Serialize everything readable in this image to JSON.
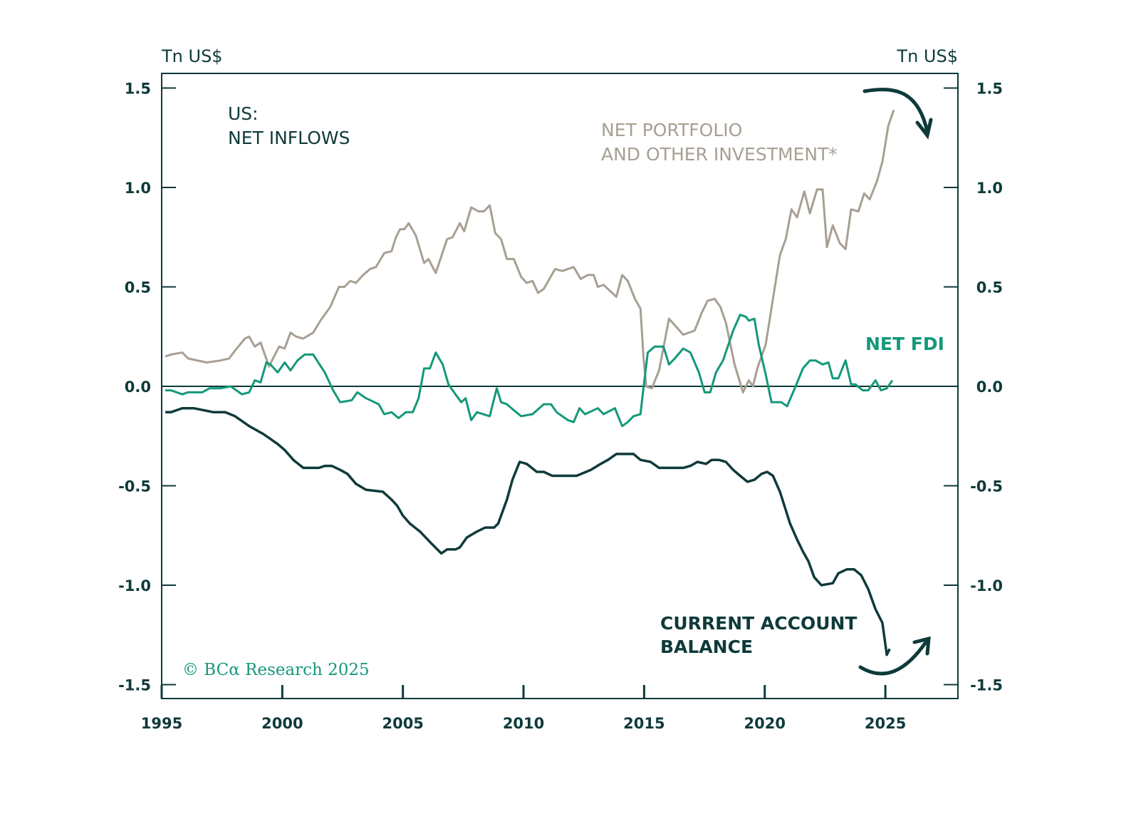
{
  "chart_data": {
    "type": "line",
    "title": "US:",
    "subtitle": "NET INFLOWS",
    "ylabel_left": "Tn US$",
    "ylabel_right": "Tn US$",
    "ylim": [
      -1.5,
      1.5
    ],
    "xlim": [
      1995,
      2028
    ],
    "yticks": [
      "1.5",
      "1.0",
      "0.5",
      "0.0",
      "-0.5",
      "-1.0",
      "-1.5"
    ],
    "ytick_values": [
      1.5,
      1.0,
      0.5,
      0.0,
      -0.5,
      -1.0,
      -1.5
    ],
    "xticks": [
      "1995",
      "2000",
      "2005",
      "2010",
      "2015",
      "2020",
      "2025"
    ],
    "xtick_values": [
      1995,
      2000,
      2005,
      2010,
      2015,
      2020,
      2025
    ],
    "grid": false,
    "zero_line": true,
    "annotations": {
      "portfolio_line1": "NET PORTFOLIO",
      "portfolio_line2": "AND OTHER INVESTMENT*",
      "fdi": "NET FDI",
      "ca_line1": "CURRENT ACCOUNT",
      "ca_line2": "BALANCE",
      "arrow_top": "curved arrow pointing down",
      "arrow_bottom": "curved arrow pointing up"
    },
    "copyright": "© BCα Research 2025",
    "series": [
      {
        "name": "NET PORTFOLIO AND OTHER INVESTMENT*",
        "color": "#a89f93",
        "x": [
          1995.15,
          1995.38,
          1995.86,
          1996.09,
          1996.86,
          1997.45,
          1997.8,
          1998.04,
          1998.45,
          1998.63,
          1998.86,
          1999.1,
          1999.45,
          1999.87,
          2000.1,
          2000.34,
          2000.58,
          2000.87,
          2001.28,
          2001.58,
          2001.99,
          2002.35,
          2002.58,
          2002.82,
          2003.05,
          2003.35,
          2003.64,
          2003.88,
          2004.23,
          2004.53,
          2004.71,
          2004.88,
          2005.06,
          2005.24,
          2005.53,
          2005.88,
          2006.06,
          2006.36,
          2006.83,
          2007.06,
          2007.36,
          2007.54,
          2007.83,
          2008.13,
          2008.36,
          2008.6,
          2008.83,
          2009.07,
          2009.31,
          2009.6,
          2009.9,
          2010.13,
          2010.37,
          2010.6,
          2010.84,
          2011.31,
          2011.61,
          2012.08,
          2012.37,
          2012.67,
          2012.91,
          2013.08,
          2013.32,
          2013.85,
          2014.09,
          2014.32,
          2014.62,
          2014.85,
          2014.97,
          2015.09,
          2015.32,
          2015.62,
          2016.03,
          2016.62,
          2016.86,
          2017.09,
          2017.39,
          2017.63,
          2017.92,
          2018.16,
          2018.39,
          2018.75,
          2019.1,
          2019.34,
          2019.51,
          2019.69,
          2020.04,
          2020.34,
          2020.63,
          2020.87,
          2021.11,
          2021.34,
          2021.64,
          2021.87,
          2022.17,
          2022.4,
          2022.58,
          2022.82,
          2023.11,
          2023.35,
          2023.58,
          2023.88,
          2024.12,
          2024.35,
          2024.65,
          2024.88,
          2025.12,
          2025.35
        ],
        "y": [
          0.15,
          0.16,
          0.17,
          0.14,
          0.12,
          0.13,
          0.14,
          0.18,
          0.24,
          0.25,
          0.2,
          0.22,
          0.1,
          0.2,
          0.19,
          0.27,
          0.25,
          0.24,
          0.27,
          0.33,
          0.4,
          0.5,
          0.5,
          0.53,
          0.52,
          0.56,
          0.59,
          0.6,
          0.67,
          0.68,
          0.75,
          0.79,
          0.79,
          0.82,
          0.76,
          0.62,
          0.64,
          0.57,
          0.74,
          0.75,
          0.82,
          0.78,
          0.9,
          0.88,
          0.88,
          0.91,
          0.77,
          0.74,
          0.64,
          0.64,
          0.55,
          0.52,
          0.53,
          0.47,
          0.49,
          0.59,
          0.58,
          0.6,
          0.54,
          0.56,
          0.56,
          0.5,
          0.51,
          0.45,
          0.56,
          0.53,
          0.44,
          0.39,
          0.15,
          0.0,
          -0.01,
          0.08,
          0.34,
          0.26,
          0.27,
          0.28,
          0.37,
          0.43,
          0.44,
          0.4,
          0.32,
          0.11,
          -0.03,
          0.03,
          0.0,
          0.09,
          0.21,
          0.44,
          0.66,
          0.74,
          0.89,
          0.85,
          0.98,
          0.87,
          0.99,
          0.99,
          0.7,
          0.81,
          0.72,
          0.69,
          0.89,
          0.88,
          0.97,
          0.94,
          1.03,
          1.13,
          1.31,
          1.39
        ]
      },
      {
        "name": "NET FDI",
        "color": "#14987a",
        "x": [
          1995.15,
          1995.38,
          1995.86,
          1996.09,
          1996.68,
          1996.98,
          1997.45,
          1997.86,
          1998.33,
          1998.63,
          1998.86,
          1999.1,
          1999.34,
          1999.51,
          1999.81,
          2000.1,
          2000.34,
          2000.63,
          2000.93,
          2001.28,
          2001.76,
          2002.11,
          2002.4,
          2002.88,
          2003.11,
          2003.47,
          2004.0,
          2004.23,
          2004.53,
          2004.82,
          2005.12,
          2005.41,
          2005.65,
          2005.88,
          2006.12,
          2006.36,
          2006.65,
          2006.89,
          2007.18,
          2007.42,
          2007.6,
          2007.83,
          2008.07,
          2008.6,
          2008.89,
          2009.07,
          2009.31,
          2009.6,
          2009.9,
          2010.37,
          2010.84,
          2011.14,
          2011.37,
          2011.84,
          2012.08,
          2012.32,
          2012.55,
          2013.08,
          2013.32,
          2013.79,
          2014.09,
          2014.32,
          2014.56,
          2014.85,
          2014.97,
          2015.15,
          2015.44,
          2015.8,
          2016.03,
          2016.27,
          2016.62,
          2016.92,
          2017.27,
          2017.51,
          2017.74,
          2017.98,
          2018.27,
          2018.69,
          2018.98,
          2019.22,
          2019.34,
          2019.57,
          2019.75,
          2020.04,
          2020.28,
          2020.69,
          2020.93,
          2021.28,
          2021.58,
          2021.87,
          2022.11,
          2022.4,
          2022.64,
          2022.82,
          2023.05,
          2023.35,
          2023.58,
          2023.76,
          2024.06,
          2024.29,
          2024.59,
          2024.82,
          2025.06,
          2025.29
        ],
        "y": [
          -0.02,
          -0.02,
          -0.04,
          -0.03,
          -0.03,
          -0.01,
          -0.01,
          0.0,
          -0.04,
          -0.03,
          0.03,
          0.02,
          0.12,
          0.11,
          0.07,
          0.12,
          0.08,
          0.13,
          0.16,
          0.16,
          0.07,
          -0.02,
          -0.08,
          -0.07,
          -0.03,
          -0.06,
          -0.09,
          -0.14,
          -0.13,
          -0.16,
          -0.13,
          -0.13,
          -0.06,
          0.09,
          0.09,
          0.17,
          0.11,
          0.01,
          -0.04,
          -0.08,
          -0.06,
          -0.17,
          -0.13,
          -0.15,
          -0.01,
          -0.08,
          -0.09,
          -0.12,
          -0.15,
          -0.14,
          -0.09,
          -0.09,
          -0.13,
          -0.17,
          -0.18,
          -0.11,
          -0.14,
          -0.11,
          -0.14,
          -0.11,
          -0.2,
          -0.18,
          -0.15,
          -0.14,
          -0.01,
          0.17,
          0.2,
          0.2,
          0.11,
          0.14,
          0.19,
          0.17,
          0.07,
          -0.03,
          -0.03,
          0.07,
          0.13,
          0.28,
          0.36,
          0.35,
          0.33,
          0.34,
          0.21,
          0.06,
          -0.08,
          -0.08,
          -0.1,
          0.0,
          0.09,
          0.13,
          0.13,
          0.11,
          0.12,
          0.04,
          0.04,
          0.13,
          0.01,
          0.01,
          -0.02,
          -0.02,
          0.03,
          -0.02,
          -0.01,
          0.03
        ]
      },
      {
        "name": "CURRENT ACCOUNT BALANCE",
        "color": "#0f3a3a",
        "x": [
          1995.15,
          1995.38,
          1995.86,
          1996.33,
          1997.15,
          1997.63,
          1998.04,
          1998.63,
          1999.22,
          1999.81,
          2000.1,
          2000.46,
          2000.87,
          2001.52,
          2001.76,
          2002.05,
          2002.4,
          2002.7,
          2003.05,
          2003.47,
          2004.17,
          2004.53,
          2004.76,
          2005.0,
          2005.29,
          2005.71,
          2006.18,
          2006.59,
          2006.83,
          2007.18,
          2007.36,
          2007.65,
          2008.07,
          2008.42,
          2008.78,
          2008.95,
          2009.31,
          2009.54,
          2009.84,
          2010.13,
          2010.55,
          2010.84,
          2011.19,
          2011.55,
          2011.78,
          2012.2,
          2012.79,
          2013.2,
          2013.5,
          2013.85,
          2014.26,
          2014.56,
          2014.85,
          2015.27,
          2015.62,
          2016.33,
          2016.62,
          2016.92,
          2017.21,
          2017.57,
          2017.8,
          2018.1,
          2018.39,
          2018.69,
          2018.98,
          2019.28,
          2019.57,
          2019.87,
          2020.1,
          2020.34,
          2020.63,
          2021.05,
          2021.34,
          2021.58,
          2021.81,
          2022.05,
          2022.35,
          2022.82,
          2023.05,
          2023.41,
          2023.7,
          2024.0,
          2024.29,
          2024.59,
          2024.88,
          2025.06,
          2025.18
        ],
        "y": [
          -0.13,
          -0.13,
          -0.11,
          -0.11,
          -0.13,
          -0.13,
          -0.15,
          -0.2,
          -0.24,
          -0.29,
          -0.32,
          -0.37,
          -0.41,
          -0.41,
          -0.4,
          -0.4,
          -0.42,
          -0.44,
          -0.49,
          -0.52,
          -0.53,
          -0.57,
          -0.6,
          -0.65,
          -0.69,
          -0.73,
          -0.79,
          -0.84,
          -0.82,
          -0.82,
          -0.81,
          -0.76,
          -0.73,
          -0.71,
          -0.71,
          -0.69,
          -0.57,
          -0.47,
          -0.38,
          -0.39,
          -0.43,
          -0.43,
          -0.45,
          -0.45,
          -0.45,
          -0.45,
          -0.42,
          -0.39,
          -0.37,
          -0.34,
          -0.34,
          -0.34,
          -0.37,
          -0.38,
          -0.41,
          -0.41,
          -0.41,
          -0.4,
          -0.38,
          -0.39,
          -0.37,
          -0.37,
          -0.38,
          -0.42,
          -0.45,
          -0.48,
          -0.47,
          -0.44,
          -0.43,
          -0.45,
          -0.53,
          -0.69,
          -0.77,
          -0.83,
          -0.88,
          -0.96,
          -1.0,
          -0.99,
          -0.94,
          -0.92,
          -0.92,
          -0.95,
          -1.02,
          -1.12,
          -1.19,
          -1.35,
          -1.32
        ]
      }
    ]
  }
}
